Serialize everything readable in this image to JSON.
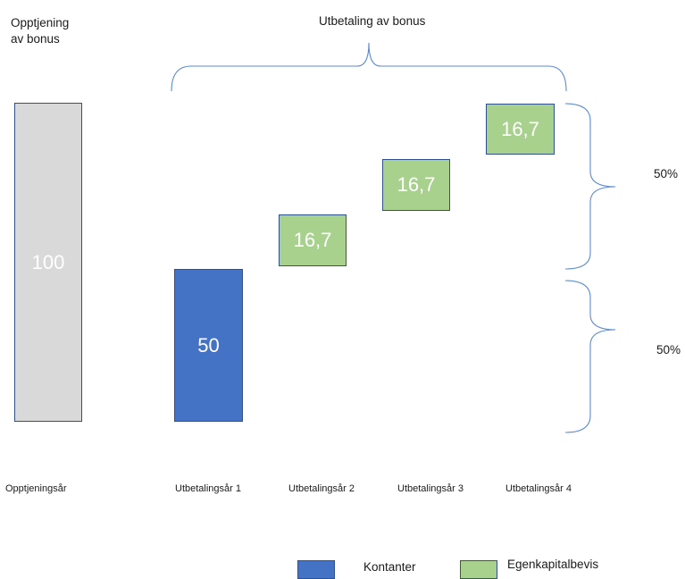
{
  "chart_data": {
    "type": "bar",
    "title": "Utbetaling av bonus",
    "left_title": "Opptjening\nav bonus",
    "categories": [
      "Opptjeningsår",
      "Utbetalingsår 1",
      "Utbetalingsår 2",
      "Utbetalingsår 3",
      "Utbetalingsår 4"
    ],
    "bars": [
      {
        "category": "Opptjeningsår",
        "value": "100",
        "fill": "#d9d9d9"
      },
      {
        "category": "Utbetalingsår 1",
        "series": "Kontanter",
        "value": "50",
        "fill": "#4472c4"
      },
      {
        "category": "Utbetalingsår 2",
        "series": "Egenkapitalbevis",
        "value": "16,7",
        "fill": "#a9d18e"
      },
      {
        "category": "Utbetalingsår 3",
        "series": "Egenkapitalbevis",
        "value": "16,7",
        "fill": "#a9d18e"
      },
      {
        "category": "Utbetalingsår 4",
        "series": "Egenkapitalbevis",
        "value": "16,7",
        "fill": "#a9d18e"
      }
    ],
    "brace_labels": [
      "50%",
      "50%"
    ],
    "legend": [
      {
        "name": "Kontanter",
        "color": "#4472c4"
      },
      {
        "name": "Egenkapitalbevis",
        "color": "#a9d18e"
      }
    ],
    "border_color": "#2f528f"
  }
}
